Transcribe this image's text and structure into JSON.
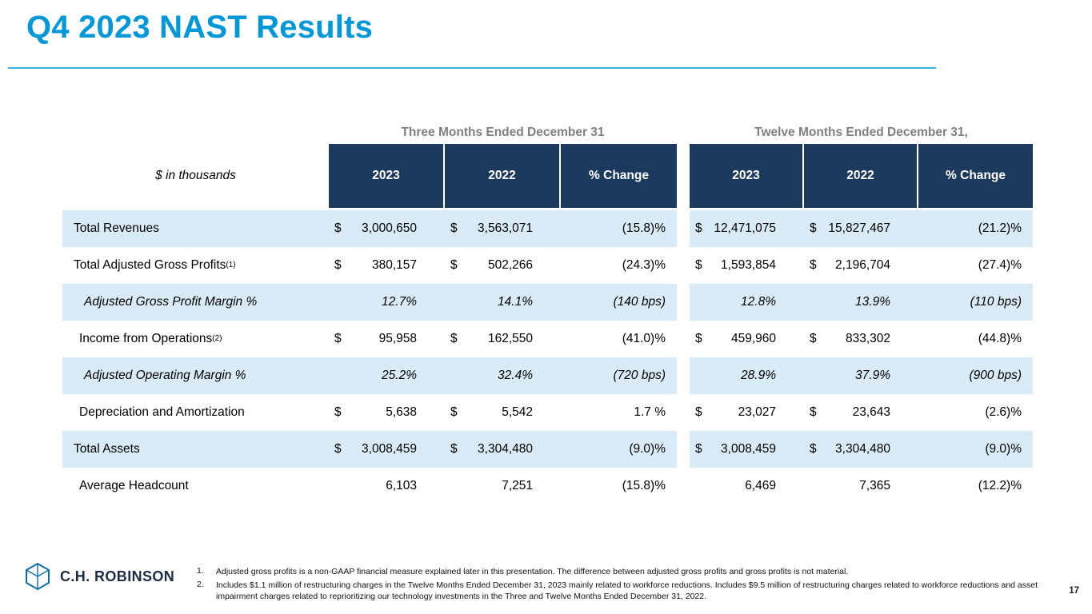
{
  "slide": {
    "title": "Q4 2023 NAST Results",
    "page_number": "17"
  },
  "table": {
    "row_label_header": "$ in thousands",
    "groups": [
      {
        "title": "Three Months Ended December 31",
        "columns": [
          "2023",
          "2022",
          "% Change"
        ]
      },
      {
        "title": "Twelve Months Ended December 31,",
        "columns": [
          "2023",
          "2022",
          "% Change"
        ]
      }
    ],
    "rows": [
      {
        "label": "Total Revenues",
        "sup": "",
        "italic": false,
        "indent": 0,
        "shaded": true,
        "cells": [
          {
            "cur": "$",
            "val": "3,000,650"
          },
          {
            "cur": "$",
            "val": "3,563,071"
          },
          {
            "val": "(15.8)%"
          },
          {
            "cur": "$",
            "val": "12,471,075"
          },
          {
            "cur": "$",
            "val": "15,827,467"
          },
          {
            "val": "(21.2)%"
          }
        ]
      },
      {
        "label": "Total Adjusted Gross Profits",
        "sup": "(1)",
        "italic": false,
        "indent": 0,
        "shaded": false,
        "cells": [
          {
            "cur": "$",
            "val": "380,157"
          },
          {
            "cur": "$",
            "val": "502,266"
          },
          {
            "val": "(24.3)%"
          },
          {
            "cur": "$",
            "val": "1,593,854"
          },
          {
            "cur": "$",
            "val": "2,196,704"
          },
          {
            "val": "(27.4)%"
          }
        ]
      },
      {
        "label": "Adjusted Gross Profit Margin %",
        "sup": "",
        "italic": true,
        "indent": 2,
        "shaded": true,
        "cells": [
          {
            "val": "12.7%"
          },
          {
            "val": "14.1%"
          },
          {
            "val": "(140 bps)"
          },
          {
            "val": "12.8%"
          },
          {
            "val": "13.9%"
          },
          {
            "val": "(110 bps)"
          }
        ]
      },
      {
        "label": "Income from Operations",
        "sup": "(2)",
        "italic": false,
        "indent": 1,
        "shaded": false,
        "cells": [
          {
            "cur": "$",
            "val": "95,958"
          },
          {
            "cur": "$",
            "val": "162,550"
          },
          {
            "val": "(41.0)%"
          },
          {
            "cur": "$",
            "val": "459,960"
          },
          {
            "cur": "$",
            "val": "833,302"
          },
          {
            "val": "(44.8)%"
          }
        ]
      },
      {
        "label": "Adjusted Operating Margin %",
        "sup": "",
        "italic": true,
        "indent": 2,
        "shaded": true,
        "cells": [
          {
            "val": "25.2%"
          },
          {
            "val": "32.4%"
          },
          {
            "val": "(720 bps)"
          },
          {
            "val": "28.9%"
          },
          {
            "val": "37.9%"
          },
          {
            "val": "(900 bps)"
          }
        ]
      },
      {
        "label": "Depreciation and Amortization",
        "sup": "",
        "italic": false,
        "indent": 1,
        "shaded": false,
        "cells": [
          {
            "cur": "$",
            "val": "5,638"
          },
          {
            "cur": "$",
            "val": "5,542"
          },
          {
            "val": "1.7 %"
          },
          {
            "cur": "$",
            "val": "23,027"
          },
          {
            "cur": "$",
            "val": "23,643"
          },
          {
            "val": "(2.6)%"
          }
        ]
      },
      {
        "label": "Total Assets",
        "sup": "",
        "italic": false,
        "indent": 0,
        "shaded": true,
        "cells": [
          {
            "cur": "$",
            "val": "3,008,459"
          },
          {
            "cur": "$",
            "val": "3,304,480"
          },
          {
            "val": "(9.0)%"
          },
          {
            "cur": "$",
            "val": "3,008,459"
          },
          {
            "cur": "$",
            "val": "3,304,480"
          },
          {
            "val": "(9.0)%"
          }
        ]
      },
      {
        "label": "Average Headcount",
        "sup": "",
        "italic": false,
        "indent": 1,
        "shaded": false,
        "cells": [
          {
            "val": "6,103"
          },
          {
            "val": "7,251"
          },
          {
            "val": "(15.8)%"
          },
          {
            "val": "6,469"
          },
          {
            "val": "7,365"
          },
          {
            "val": "(12.2)%"
          }
        ]
      }
    ]
  },
  "footer": {
    "logo_text": "C.H. ROBINSON",
    "footnotes": [
      {
        "num": "1.",
        "text": "Adjusted gross profits is a non-GAAP financial measure explained later in this presentation. The difference between adjusted gross profits and gross profits is not material."
      },
      {
        "num": "2.",
        "text": "Includes $1.1 million of restructuring charges in the Twelve Months Ended December 31, 2023 mainly related to workforce reductions. Includes $9.5 million of restructuring charges related to workforce reductions and asset impairment charges related to reprioritizing our technology investments in the Three and Twelve Months Ended December 31, 2022."
      }
    ]
  },
  "colors": {
    "accent": "#0098d8",
    "rule": "#3fadd9",
    "navy": "#1c3a5e",
    "row_shade": "#d9ebf7",
    "group_title_gray": "#7f7f7f",
    "logo_navy": "#1d2b45",
    "logo_blue": "#0e6fa8"
  }
}
